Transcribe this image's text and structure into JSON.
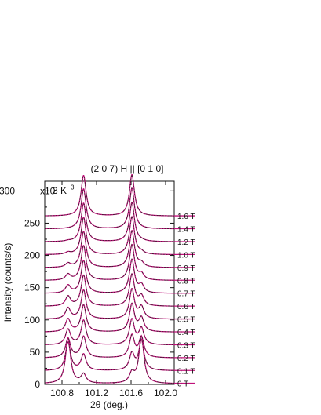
{
  "chart_data": {
    "type": "line",
    "title": "(2 0 7)   H || [0 1 0]",
    "annotation": "3 K",
    "xlabel": "2θ  (deg.)",
    "ylabel": "Intensity  (counts/s)",
    "x_ticks": [
      "100.8",
      "101.2",
      "101.6",
      "102.0"
    ],
    "y_ticks": [
      "0",
      "50",
      "100",
      "150",
      "200",
      "250",
      "300"
    ],
    "y_multiplier": "x10",
    "y_exponent": "3",
    "xlim": [
      100.6,
      102.1
    ],
    "ylim": [
      0,
      315
    ],
    "offset_step": 20,
    "colors": {
      "model": "#c0127a",
      "data": "#222222"
    },
    "grid": false,
    "series": [
      {
        "name": "0 T",
        "offset": 0,
        "peak1_x": 100.87,
        "peak1": 71,
        "peak2_x": 101.72,
        "peak2": 73,
        "peak3_x": 101.05,
        "peak3": 14,
        "peak4_x": 101.61,
        "peak4": 15
      },
      {
        "name": "0.1 T",
        "offset": 20,
        "peak1_x": 100.87,
        "peak1": 44,
        "peak2_x": 101.72,
        "peak2": 46,
        "peak3_x": 101.05,
        "peak3": 25,
        "peak4_x": 101.61,
        "peak4": 26
      },
      {
        "name": "0.2 T",
        "offset": 40,
        "peak1_x": 100.87,
        "peak1": 30,
        "peak2_x": 101.72,
        "peak2": 31,
        "peak3_x": 101.05,
        "peak3": 33,
        "peak4_x": 101.61,
        "peak4": 34
      },
      {
        "name": "0.3 T",
        "offset": 60,
        "peak1_x": 100.87,
        "peak1": 24,
        "peak2_x": 101.72,
        "peak2": 25,
        "peak3_x": 101.05,
        "peak3": 38,
        "peak4_x": 101.61,
        "peak4": 39
      },
      {
        "name": "0.4 T",
        "offset": 80,
        "peak1_x": 100.87,
        "peak1": 20,
        "peak2_x": 101.72,
        "peak2": 21,
        "peak3_x": 101.05,
        "peak3": 42,
        "peak4_x": 101.61,
        "peak4": 43
      },
      {
        "name": "0.5 T",
        "offset": 100,
        "peak1_x": 100.87,
        "peak1": 17,
        "peak2_x": 101.72,
        "peak2": 18,
        "peak3_x": 101.05,
        "peak3": 45,
        "peak4_x": 101.61,
        "peak4": 46
      },
      {
        "name": "0.6 T",
        "offset": 120,
        "peak1_x": 100.87,
        "peak1": 15,
        "peak2_x": 101.72,
        "peak2": 15,
        "peak3_x": 101.05,
        "peak3": 48,
        "peak4_x": 101.61,
        "peak4": 49
      },
      {
        "name": "0.7 T",
        "offset": 140,
        "peak1_x": 100.87,
        "peak1": 12,
        "peak2_x": 101.72,
        "peak2": 12,
        "peak3_x": 101.05,
        "peak3": 51,
        "peak4_x": 101.61,
        "peak4": 52
      },
      {
        "name": "0.8 T",
        "offset": 160,
        "peak1_x": 100.87,
        "peak1": 9,
        "peak2_x": 101.72,
        "peak2": 9,
        "peak3_x": 101.05,
        "peak3": 54,
        "peak4_x": 101.61,
        "peak4": 55
      },
      {
        "name": "0.9 T",
        "offset": 180,
        "peak1_x": 100.87,
        "peak1": 6,
        "peak2_x": 101.72,
        "peak2": 6,
        "peak3_x": 101.05,
        "peak3": 56,
        "peak4_x": 101.61,
        "peak4": 57
      },
      {
        "name": "1.0 T",
        "offset": 200,
        "peak1_x": 100.87,
        "peak1": 3,
        "peak2_x": 101.72,
        "peak2": 3,
        "peak3_x": 101.05,
        "peak3": 58,
        "peak4_x": 101.61,
        "peak4": 59
      },
      {
        "name": "1.2 T",
        "offset": 220,
        "peak1_x": 100.87,
        "peak1": 1,
        "peak2_x": 101.72,
        "peak2": 1,
        "peak3_x": 101.05,
        "peak3": 60,
        "peak4_x": 101.61,
        "peak4": 61
      },
      {
        "name": "1.4 T",
        "offset": 240,
        "peak1_x": 100.87,
        "peak1": 0,
        "peak2_x": 101.72,
        "peak2": 0,
        "peak3_x": 101.05,
        "peak3": 62,
        "peak4_x": 101.61,
        "peak4": 63
      },
      {
        "name": "1.6 T",
        "offset": 260,
        "peak1_x": 100.87,
        "peak1": 0,
        "peak2_x": 101.72,
        "peak2": 0,
        "peak3_x": 101.05,
        "peak3": 63,
        "peak4_x": 101.61,
        "peak4": 64
      }
    ]
  }
}
